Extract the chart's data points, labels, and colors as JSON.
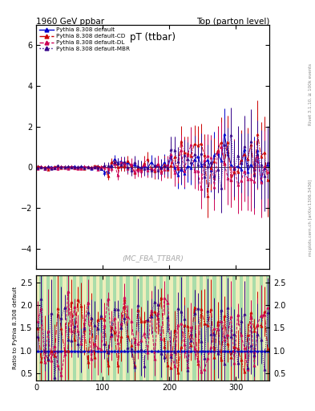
{
  "title_left": "1960 GeV ppbar",
  "title_right": "Top (parton level)",
  "plot_title": "pT (ttbar)",
  "ylabel_ratio": "Ratio to Pythia 8.308 default",
  "watermark": "(MC_FBA_TTBAR)",
  "right_label_top": "Rivet 3.1.10, ≥ 100k events",
  "right_label_bottom": "mcplots.cern.ch [arXiv:1306.3436]",
  "ylim_main": [
    -5.0,
    7.0
  ],
  "ylim_ratio": [
    0.35,
    2.65
  ],
  "xlim": [
    0,
    350
  ],
  "yticks_main": [
    -4,
    -2,
    0,
    2,
    4,
    6
  ],
  "yticks_ratio": [
    0.5,
    1.0,
    1.5,
    2.0,
    2.5
  ],
  "xticks": [
    0,
    100,
    200,
    300
  ],
  "legend_entries": [
    "Pythia 8.308 default",
    "Pythia 8.308 default-CD",
    "Pythia 8.308 default-DL",
    "Pythia 8.308 default-MBR"
  ],
  "colors": {
    "default": "#0000cc",
    "CD": "#cc0000",
    "DL": "#cc0055",
    "MBR": "#330088"
  },
  "linestyles": {
    "default": "-",
    "CD": "-.",
    "DL": "--",
    "MBR": ":"
  },
  "bg_green": "#aaddaa",
  "bg_yellow": "#eeeebb",
  "marker_style": "^",
  "marker_size": 2.5,
  "n_bins": 70
}
